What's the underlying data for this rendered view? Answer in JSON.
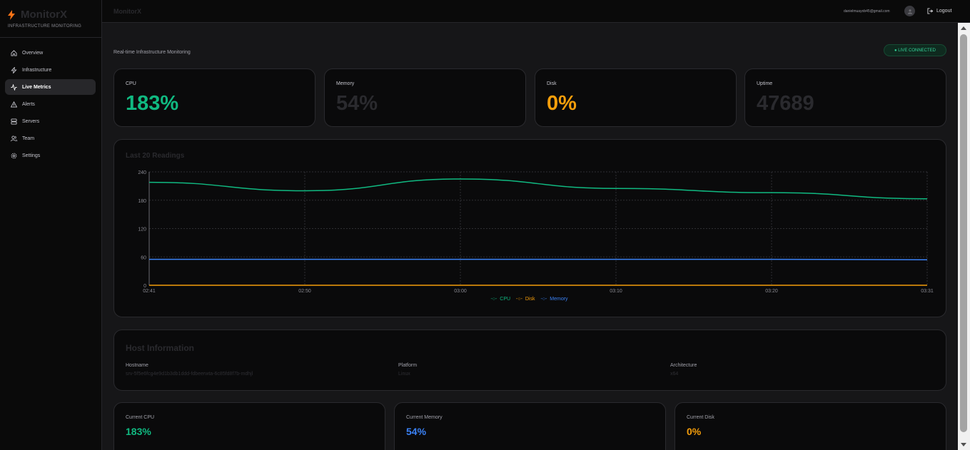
{
  "brand": {
    "name": "MonitorX",
    "subtitle": "INFRASTRUCTURE MONITORING"
  },
  "sidebar": {
    "items": [
      {
        "label": "Overview",
        "icon": "home-icon",
        "active": false
      },
      {
        "label": "Infrastructure",
        "icon": "bolt-icon",
        "active": false
      },
      {
        "label": "Live Metrics",
        "icon": "activity-icon",
        "active": true
      },
      {
        "label": "Alerts",
        "icon": "alert-triangle-icon",
        "active": false
      },
      {
        "label": "Servers",
        "icon": "server-icon",
        "active": false
      },
      {
        "label": "Team",
        "icon": "users-icon",
        "active": false
      },
      {
        "label": "Settings",
        "icon": "gear-icon",
        "active": false
      }
    ]
  },
  "topbar": {
    "title": "MonitorX",
    "email": "danielmuayob45@gmail.com",
    "logout": "Logout"
  },
  "main": {
    "subtitle": "Real-time Infrastructure Monitoring",
    "status": "● LIVE CONNECTED",
    "stats": [
      {
        "label": "CPU",
        "value": "183%",
        "color": "#10b981"
      },
      {
        "label": "Memory",
        "value": "54%",
        "color": "#2a2a2e"
      },
      {
        "label": "Disk",
        "value": "0%",
        "color": "#f59e0b"
      },
      {
        "label": "Uptime",
        "value": "47689",
        "color": "#2a2a2e"
      }
    ],
    "chart_title": "Last 20 Readings",
    "host": {
      "title": "Host Information",
      "hostname_label": "Hostname",
      "hostname": "srv-5f5e6fcg4e9d1b3db1ddd-fdbeerwta-6c85fd8f7b-mdhjl",
      "platform_label": "Platform",
      "platform": "Linux",
      "arch_label": "Architecture",
      "arch": "x64"
    },
    "current": [
      {
        "label": "Current CPU",
        "value": "183%",
        "color": "#10b981"
      },
      {
        "label": "Current Memory",
        "value": "54%",
        "color": "#3b82f6"
      },
      {
        "label": "Current Disk",
        "value": "0%",
        "color": "#f59e0b"
      }
    ]
  },
  "chart_data": {
    "type": "line",
    "x": [
      "02:41",
      "02:50",
      "03:00",
      "03:10",
      "03:20",
      "03:31"
    ],
    "ylim": [
      0,
      240
    ],
    "y_ticks": [
      0,
      60,
      120,
      180,
      240
    ],
    "grid": true,
    "legend_placement": "bottom",
    "series": [
      {
        "name": "CPU",
        "color": "#10b981",
        "values": [
          218,
          200,
          225,
          205,
          196,
          183
        ]
      },
      {
        "name": "Disk",
        "color": "#f59e0b",
        "values": [
          0,
          0,
          0,
          0,
          0,
          0
        ]
      },
      {
        "name": "Memory",
        "color": "#3b82f6",
        "values": [
          55,
          55,
          55,
          55,
          55,
          54
        ]
      }
    ]
  }
}
